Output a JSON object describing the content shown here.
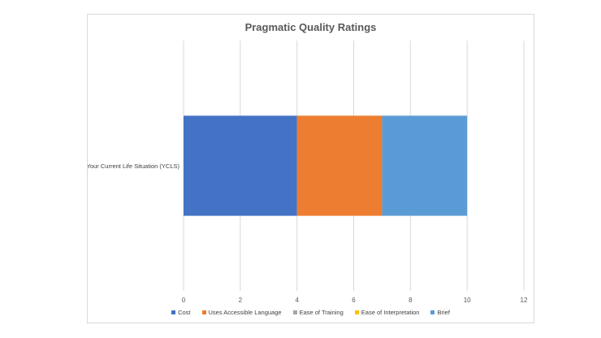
{
  "chart_data": {
    "type": "bar",
    "orientation": "horizontal",
    "stacked": true,
    "title": "Pragmatic Quality Ratings",
    "categories": [
      "Your Current Life Situation (YCLS)"
    ],
    "series": [
      {
        "name": "Cost",
        "values": [
          4
        ],
        "color": "#4472c4"
      },
      {
        "name": "Uses Accessible Language",
        "values": [
          3
        ],
        "color": "#ed7d31"
      },
      {
        "name": "Ease of Training",
        "values": [
          0
        ],
        "color": "#a5a5a5"
      },
      {
        "name": "Ease of Interpretation",
        "values": [
          0
        ],
        "color": "#ffc000"
      },
      {
        "name": "Brief",
        "values": [
          3
        ],
        "color": "#5b9bd5"
      }
    ],
    "xlim": [
      0,
      12
    ],
    "xticks": [
      0,
      2,
      4,
      6,
      8,
      10,
      12
    ],
    "grid": "vertical",
    "legend": "bottom"
  }
}
